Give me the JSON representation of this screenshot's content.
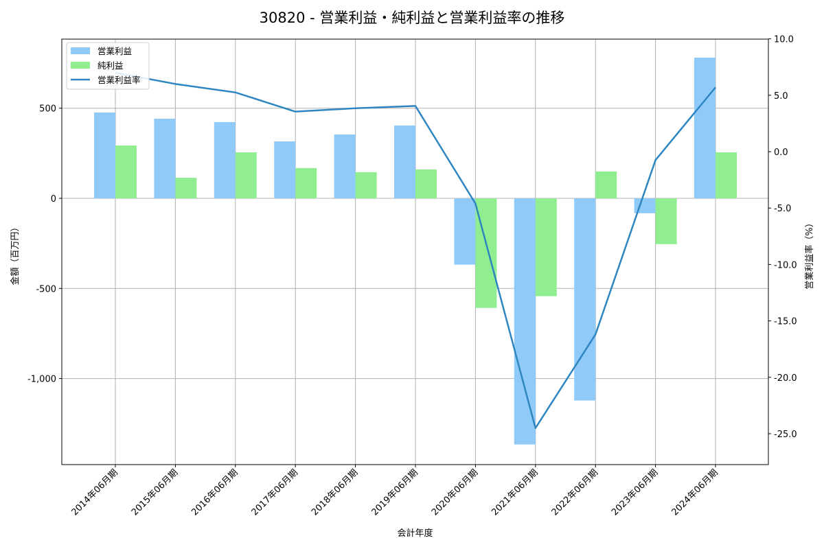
{
  "chart_data": {
    "type": "bar",
    "title": "30820 - 営業利益・純利益と営業利益率の推移",
    "xlabel": "会計年度",
    "ylabel": "金額（百万円）",
    "y2label": "営業利益率（%）",
    "categories": [
      "2014年06月期",
      "2015年06月期",
      "2016年06月期",
      "2017年06月期",
      "2018年06月期",
      "2019年06月期",
      "2020年06月期",
      "2021年06月期",
      "2022年06月期",
      "2023年06月期",
      "2024年06月期"
    ],
    "series": [
      {
        "name": "営業利益",
        "type": "bar",
        "axis": "left",
        "color": "#90CAF9",
        "values": [
          476,
          442,
          423,
          316,
          354,
          404,
          -368,
          -1366,
          -1122,
          -83,
          781
        ]
      },
      {
        "name": "純利益",
        "type": "bar",
        "axis": "left",
        "color": "#90EE90",
        "values": [
          293,
          114,
          255,
          168,
          145,
          160,
          -608,
          -543,
          149,
          -254,
          255
        ]
      },
      {
        "name": "営業利益率",
        "type": "line",
        "axis": "right",
        "color": "#2E86C1",
        "values": [
          7.0,
          6.0,
          5.25,
          3.55,
          3.85,
          4.05,
          -4.6,
          -24.5,
          -16.2,
          -0.75,
          5.7
        ]
      }
    ],
    "ylim": [
      -1480,
      885
    ],
    "y2lim": [
      -27.7,
      10.0
    ],
    "yticks": [
      500,
      0,
      -500,
      -1000
    ],
    "ytick_labels": [
      "500",
      "0",
      "-500",
      "-1,000"
    ],
    "y2ticks": [
      10.0,
      5.0,
      0.0,
      -5.0,
      -10.0,
      -15.0,
      -20.0,
      -25.0
    ],
    "y2tick_labels": [
      "10.0",
      "5.0",
      "0.0",
      "-5.0",
      "-10.0",
      "-15.0",
      "-20.0",
      "-25.0"
    ],
    "grid": true,
    "legend_position": "upper left"
  }
}
